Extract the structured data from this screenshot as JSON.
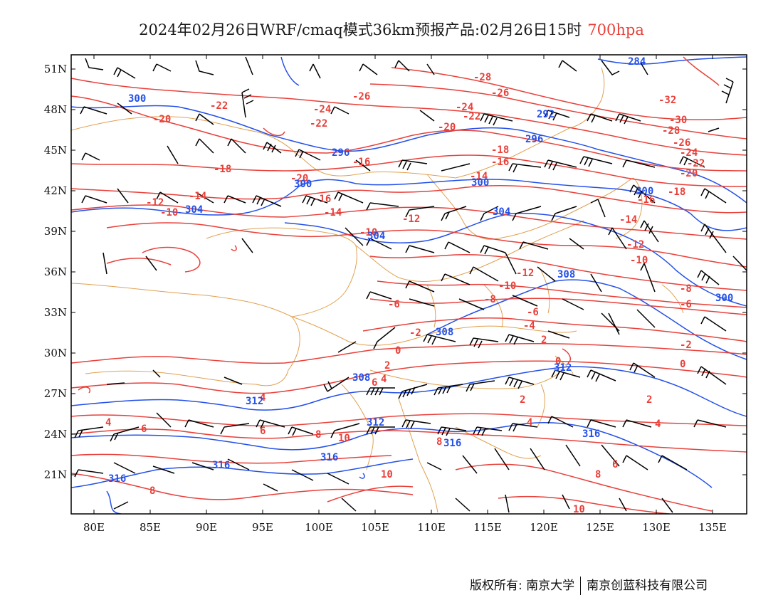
{
  "header": {
    "title": "2024年02月26日WRF/cmaq模式36km预报产品:02月26日15时",
    "level": "700hpa"
  },
  "axes": {
    "x_ticks": [
      "80E",
      "85E",
      "90E",
      "95E",
      "100E",
      "105E",
      "110E",
      "115E",
      "120E",
      "125E",
      "130E",
      "135E"
    ],
    "y_ticks": [
      "51N",
      "48N",
      "45N",
      "42N",
      "39N",
      "36N",
      "33N",
      "30N",
      "27N",
      "24N",
      "21N"
    ]
  },
  "colors": {
    "temperature_contour": "#e8403a",
    "height_contour": "#2450e8",
    "boundary": "#e0a050",
    "wind_barb": "#000000"
  },
  "temperature_labels": [
    "-28",
    "-26",
    "-32",
    "-30",
    "-28",
    "-26",
    "-24",
    "-22",
    "-20",
    "-18",
    "-16",
    "-14",
    "-12",
    "-10",
    "-8",
    "-6",
    "-4",
    "-2",
    "0",
    "2",
    "4",
    "6",
    "8",
    "10"
  ],
  "height_labels": [
    "284",
    "292",
    "296",
    "300",
    "304",
    "308",
    "312",
    "316"
  ],
  "footer": {
    "copyright": "版权所有: 南京大学",
    "company": "南京创蓝科技有限公司"
  }
}
